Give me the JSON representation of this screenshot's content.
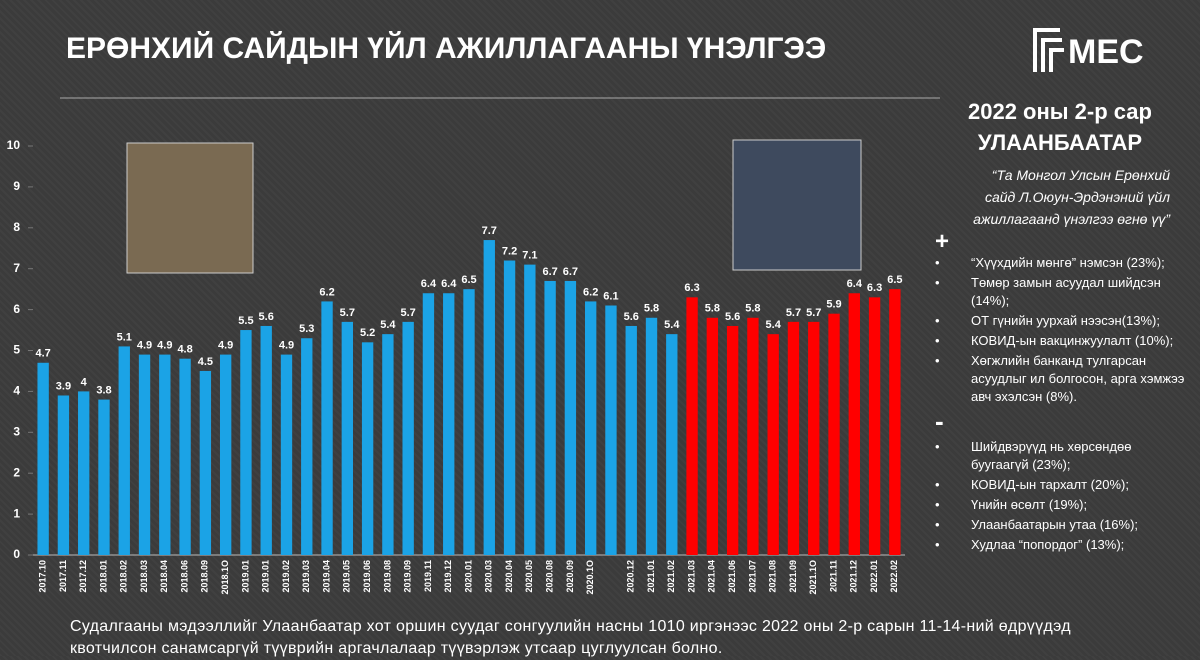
{
  "chart_data": {
    "type": "bar",
    "title": "ЕРӨНХИЙ САЙДЫН ҮЙЛ АЖИЛЛАГААНЫ ҮНЭЛГЭЭ",
    "categories": [
      "2017.10",
      "2017.11",
      "2017.12",
      "2018.01",
      "2018.02",
      "2018.03",
      "2018.04",
      "2018.06",
      "2018.09",
      "2018.1O",
      "2019.01",
      "2019.01",
      "2019.02",
      "2019.03",
      "2019.04",
      "2019.05",
      "2019.06",
      "2019.08",
      "2019.09",
      "2019.11",
      "2019.12",
      "2020.01",
      "2020.03",
      "2020.04",
      "2020.05",
      "2020.08",
      "2020.09",
      "2020.1O",
      null,
      "2020.12",
      "2021.01",
      "2021.02",
      "2021.03",
      "2021.04",
      "2021.06",
      "2021.07",
      "2021.08",
      "2021.09",
      "2021.1O",
      "2021.11",
      "2021.12",
      "2022.01",
      "2022.02"
    ],
    "series": [
      {
        "color": "#1ba3e6",
        "values": [
          4.7,
          3.9,
          4,
          3.8,
          5.1,
          4.9,
          4.9,
          4.8,
          4.5,
          4.9,
          5.5,
          5.6,
          4.9,
          5.3,
          6.2,
          5.7,
          5.2,
          5.4,
          5.7,
          6.4,
          6.4,
          6.5,
          7.7,
          7.2,
          7.1,
          6.7,
          6.7,
          6.2,
          6.1,
          5.6,
          5.8,
          5.4,
          null,
          null,
          null,
          null,
          null,
          null,
          null,
          null,
          null,
          null,
          null
        ]
      },
      {
        "color": "#ff0000",
        "values": [
          null,
          null,
          null,
          null,
          null,
          null,
          null,
          null,
          null,
          null,
          null,
          null,
          null,
          null,
          null,
          null,
          null,
          null,
          null,
          null,
          null,
          null,
          null,
          null,
          null,
          null,
          null,
          null,
          null,
          null,
          null,
          null,
          6.3,
          5.8,
          5.6,
          5.8,
          5.4,
          5.7,
          5.7,
          5.9,
          6.4,
          6.3,
          6.5
        ]
      }
    ],
    "ylim": [
      0,
      10
    ],
    "yticks": [
      0,
      1,
      2,
      3,
      4,
      5,
      6,
      7,
      8,
      9,
      10
    ],
    "grid": false
  },
  "logo": "MEC",
  "panel": {
    "date": "2022 оны 2-р сар",
    "city": "УЛААНБААТАР",
    "question": "“Та Монгол Улсын Ерөнхий сайд Л.Оюун-Эрдэнэний үйл ажиллагаанд үнэлгээ өгнө үү”",
    "plus": "+",
    "positive": [
      "“Хүүхдийн мөнгө” нэмсэн (23%);",
      "Төмөр замын асуудал шийдсэн (14%);",
      "ОТ гүнийн уурхай нээсэн(13%);",
      "КОВИД-ын вакцинжуулалт (10%);",
      "Хөгжлийн банканд тулгарсан асуудлыг ил болгосон, арга хэмжээ авч эхэлсэн (8%)."
    ],
    "minus": "-",
    "negative": [
      "Шийдвэрүүд нь хөрсөндөө буугаагүй (23%);",
      "КОВИД-ын тархалт (20%);",
      "Үнийн өсөлт (19%);",
      "Улаанбаатарын утаа (16%);",
      "Худлаа “попордог” (13%);"
    ]
  },
  "footnote": "Судалгааны мэдээллийг Улаанбаатар хот оршин суудаг сонгуулийн насны 1010 иргэнээс 2022 оны 2-р сарын 11-14-ний өдрүүдэд квотчилсон санамсаргүй түүврийн аргачлалаар түүвэрлэж утсаар цуглуулсан болно."
}
